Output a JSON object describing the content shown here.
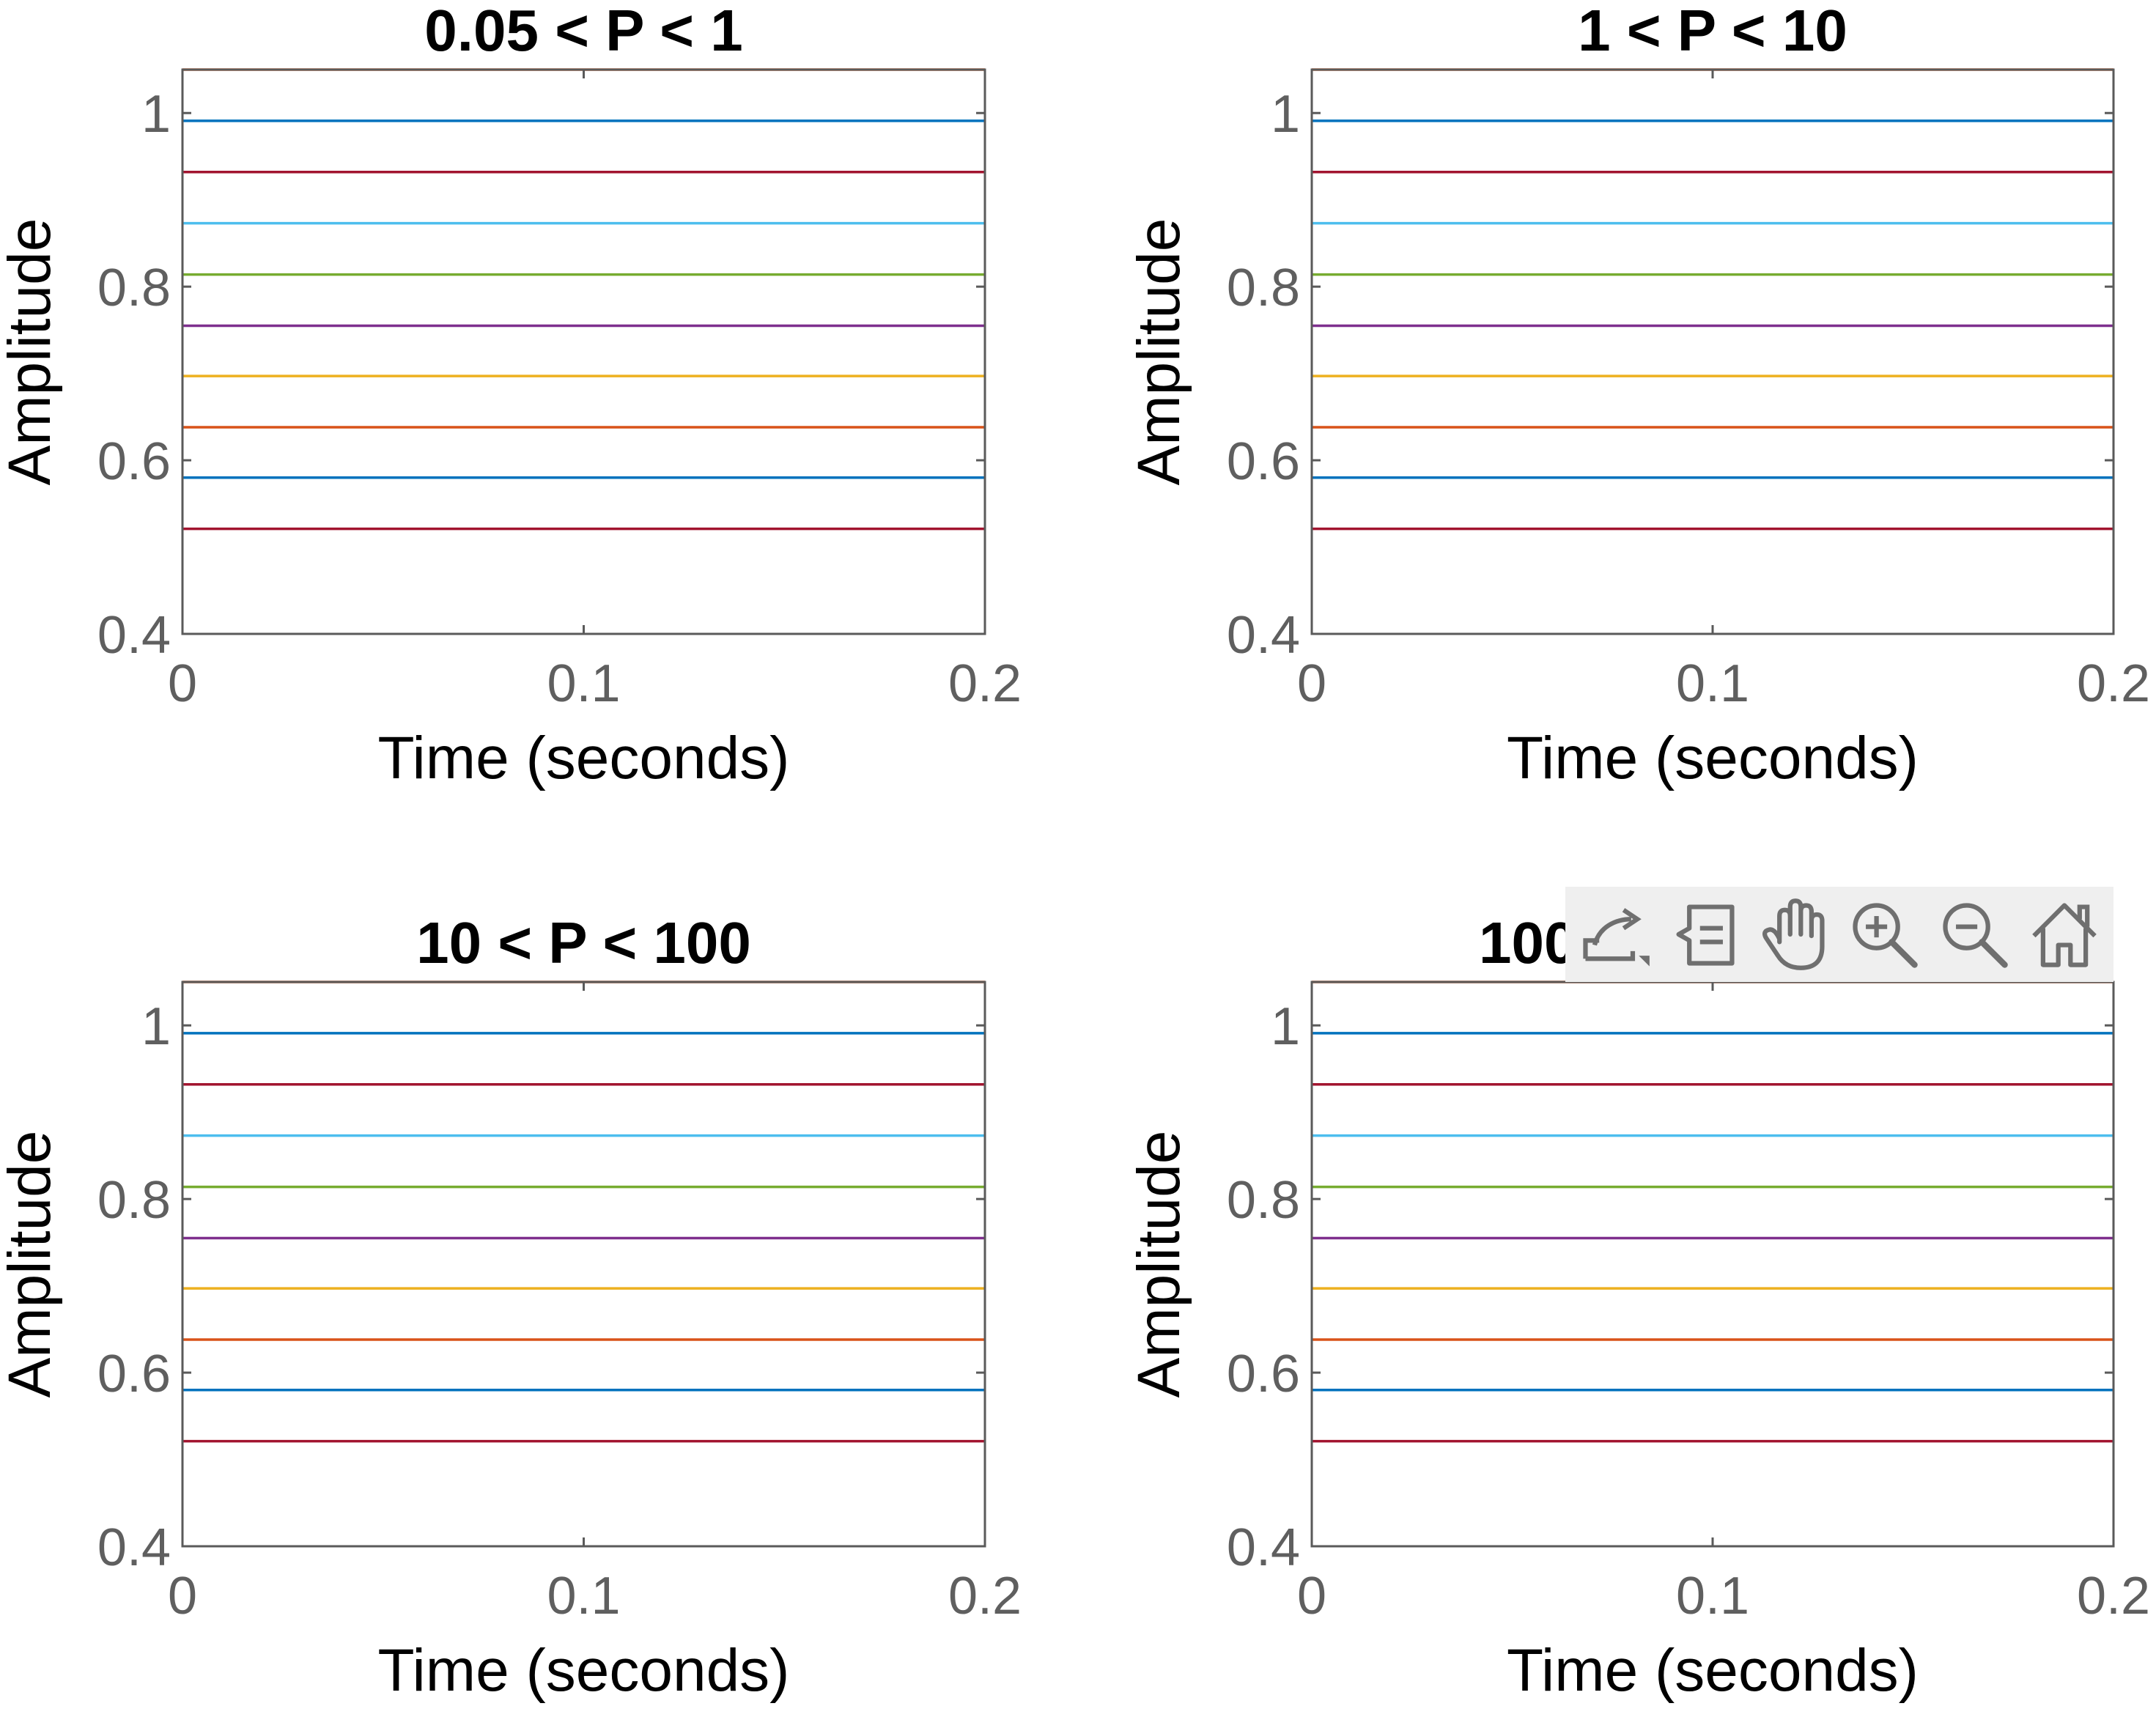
{
  "chart_data": [
    {
      "type": "line",
      "title": "0.05 < P < 1",
      "xlabel": "Time (seconds)",
      "ylabel": "Amplitude",
      "xlim": [
        0,
        0.2
      ],
      "ylim": [
        0.4,
        1.05
      ],
      "xticks": [
        "0",
        "0.1",
        "0.2"
      ],
      "yticks": [
        "0.4",
        "0.6",
        "0.8",
        "1"
      ],
      "grid": false,
      "series": [
        {
          "color": "#d95319",
          "x": [
            0,
            0.2
          ],
          "y": [
            1.05,
            1.05
          ]
        },
        {
          "color": "#0072bd",
          "x": [
            0,
            0.2
          ],
          "y": [
            0.991,
            0.991
          ]
        },
        {
          "color": "#a2142f",
          "x": [
            0,
            0.2
          ],
          "y": [
            0.932,
            0.932
          ]
        },
        {
          "color": "#4dbeee",
          "x": [
            0,
            0.2
          ],
          "y": [
            0.873,
            0.873
          ]
        },
        {
          "color": "#77ac30",
          "x": [
            0,
            0.2
          ],
          "y": [
            0.814,
            0.814
          ]
        },
        {
          "color": "#7e2f8e",
          "x": [
            0,
            0.2
          ],
          "y": [
            0.755,
            0.755
          ]
        },
        {
          "color": "#edb120",
          "x": [
            0,
            0.2
          ],
          "y": [
            0.697,
            0.697
          ]
        },
        {
          "color": "#d95319",
          "x": [
            0,
            0.2
          ],
          "y": [
            0.638,
            0.638
          ]
        },
        {
          "color": "#0072bd",
          "x": [
            0,
            0.2
          ],
          "y": [
            0.58,
            0.58
          ]
        },
        {
          "color": "#a2142f",
          "x": [
            0,
            0.2
          ],
          "y": [
            0.521,
            0.521
          ]
        }
      ]
    },
    {
      "type": "line",
      "title": "1 < P < 10",
      "xlabel": "Time (seconds)",
      "ylabel": "Amplitude",
      "xlim": [
        0,
        0.2
      ],
      "ylim": [
        0.4,
        1.05
      ],
      "xticks": [
        "0",
        "0.1",
        "0.2"
      ],
      "yticks": [
        "0.4",
        "0.6",
        "0.8",
        "1"
      ],
      "grid": false,
      "series": [
        {
          "color": "#d95319",
          "x": [
            0,
            0.2
          ],
          "y": [
            1.05,
            1.05
          ]
        },
        {
          "color": "#0072bd",
          "x": [
            0,
            0.2
          ],
          "y": [
            0.991,
            0.991
          ]
        },
        {
          "color": "#a2142f",
          "x": [
            0,
            0.2
          ],
          "y": [
            0.932,
            0.932
          ]
        },
        {
          "color": "#4dbeee",
          "x": [
            0,
            0.2
          ],
          "y": [
            0.873,
            0.873
          ]
        },
        {
          "color": "#77ac30",
          "x": [
            0,
            0.2
          ],
          "y": [
            0.814,
            0.814
          ]
        },
        {
          "color": "#7e2f8e",
          "x": [
            0,
            0.2
          ],
          "y": [
            0.755,
            0.755
          ]
        },
        {
          "color": "#edb120",
          "x": [
            0,
            0.2
          ],
          "y": [
            0.697,
            0.697
          ]
        },
        {
          "color": "#d95319",
          "x": [
            0,
            0.2
          ],
          "y": [
            0.638,
            0.638
          ]
        },
        {
          "color": "#0072bd",
          "x": [
            0,
            0.2
          ],
          "y": [
            0.58,
            0.58
          ]
        },
        {
          "color": "#a2142f",
          "x": [
            0,
            0.2
          ],
          "y": [
            0.521,
            0.521
          ]
        }
      ]
    },
    {
      "type": "line",
      "title": "10 < P < 100",
      "xlabel": "Time (seconds)",
      "ylabel": "Amplitude",
      "xlim": [
        0,
        0.2
      ],
      "ylim": [
        0.4,
        1.05
      ],
      "xticks": [
        "0",
        "0.1",
        "0.2"
      ],
      "yticks": [
        "0.4",
        "0.6",
        "0.8",
        "1"
      ],
      "grid": false,
      "series": [
        {
          "color": "#d95319",
          "x": [
            0,
            0.2
          ],
          "y": [
            1.05,
            1.05
          ]
        },
        {
          "color": "#0072bd",
          "x": [
            0,
            0.2
          ],
          "y": [
            0.991,
            0.991
          ]
        },
        {
          "color": "#a2142f",
          "x": [
            0,
            0.2
          ],
          "y": [
            0.932,
            0.932
          ]
        },
        {
          "color": "#4dbeee",
          "x": [
            0,
            0.2
          ],
          "y": [
            0.873,
            0.873
          ]
        },
        {
          "color": "#77ac30",
          "x": [
            0,
            0.2
          ],
          "y": [
            0.814,
            0.814
          ]
        },
        {
          "color": "#7e2f8e",
          "x": [
            0,
            0.2
          ],
          "y": [
            0.755,
            0.755
          ]
        },
        {
          "color": "#edb120",
          "x": [
            0,
            0.2
          ],
          "y": [
            0.697,
            0.697
          ]
        },
        {
          "color": "#d95319",
          "x": [
            0,
            0.2
          ],
          "y": [
            0.638,
            0.638
          ]
        },
        {
          "color": "#0072bd",
          "x": [
            0,
            0.2
          ],
          "y": [
            0.58,
            0.58
          ]
        },
        {
          "color": "#a2142f",
          "x": [
            0,
            0.2
          ],
          "y": [
            0.521,
            0.521
          ]
        }
      ]
    },
    {
      "type": "line",
      "title": "100",
      "xlabel": "Time (seconds)",
      "ylabel": "Amplitude",
      "xlim": [
        0,
        0.2
      ],
      "ylim": [
        0.4,
        1.05
      ],
      "xticks": [
        "0",
        "0.1",
        "0.2"
      ],
      "yticks": [
        "0.4",
        "0.6",
        "0.8",
        "1"
      ],
      "grid": false,
      "series": [
        {
          "color": "#d95319",
          "x": [
            0,
            0.2
          ],
          "y": [
            1.05,
            1.05
          ]
        },
        {
          "color": "#0072bd",
          "x": [
            0,
            0.2
          ],
          "y": [
            0.991,
            0.991
          ]
        },
        {
          "color": "#a2142f",
          "x": [
            0,
            0.2
          ],
          "y": [
            0.932,
            0.932
          ]
        },
        {
          "color": "#4dbeee",
          "x": [
            0,
            0.2
          ],
          "y": [
            0.873,
            0.873
          ]
        },
        {
          "color": "#77ac30",
          "x": [
            0,
            0.2
          ],
          "y": [
            0.814,
            0.814
          ]
        },
        {
          "color": "#7e2f8e",
          "x": [
            0,
            0.2
          ],
          "y": [
            0.755,
            0.755
          ]
        },
        {
          "color": "#edb120",
          "x": [
            0,
            0.2
          ],
          "y": [
            0.697,
            0.697
          ]
        },
        {
          "color": "#d95319",
          "x": [
            0,
            0.2
          ],
          "y": [
            0.638,
            0.638
          ]
        },
        {
          "color": "#0072bd",
          "x": [
            0,
            0.2
          ],
          "y": [
            0.58,
            0.58
          ]
        },
        {
          "color": "#a2142f",
          "x": [
            0,
            0.2
          ],
          "y": [
            0.521,
            0.521
          ]
        }
      ]
    }
  ],
  "axes_toolbar": {
    "icons": [
      "export-icon",
      "data-tips-icon",
      "pan-icon",
      "zoom-in-icon",
      "zoom-out-icon",
      "home-icon"
    ]
  },
  "colors": {
    "axis": "#5a5a5a",
    "tick_label": "#5f5f5f",
    "title": "#000000",
    "toolbar_bg": "#efefef",
    "toolbar_icon": "#6f6f6f"
  }
}
